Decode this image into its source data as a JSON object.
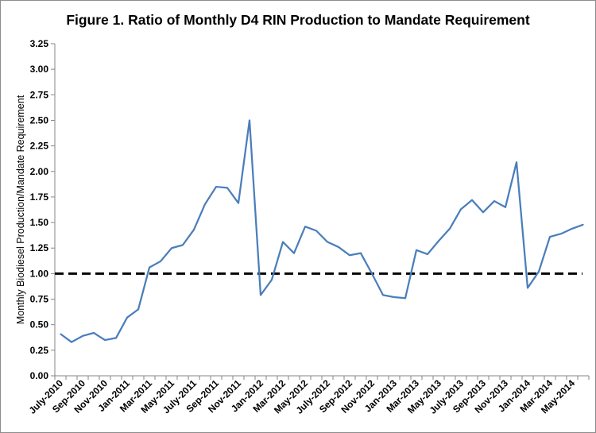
{
  "chart_data": {
    "type": "line",
    "title": "Figure 1. Ratio of Monthly D4 RIN Production to Mandate Requirement",
    "xlabel": "",
    "ylabel": "Monthly Biodiesel Production/Mandate Requirement",
    "ylim": [
      0,
      3.25
    ],
    "yticks": [
      "0.00",
      "0.25",
      "0.50",
      "0.75",
      "1.00",
      "1.25",
      "1.50",
      "1.75",
      "2.00",
      "2.25",
      "2.50",
      "2.75",
      "3.00",
      "3.25"
    ],
    "x": [
      "July-2010",
      "Aug-2010",
      "Sep-2010",
      "Oct-2010",
      "Nov-2010",
      "Dec-2010",
      "Jan-2011",
      "Feb-2011",
      "Mar-2011",
      "Apr-2011",
      "May-2011",
      "Jun-2011",
      "July-2011",
      "Aug-2011",
      "Sep-2011",
      "Oct-2011",
      "Nov-2011",
      "Dec-2011",
      "Jan-2012",
      "Feb-2012",
      "Mar-2012",
      "Apr-2012",
      "May-2012",
      "Jun-2012",
      "July-2012",
      "Aug-2012",
      "Sep-2012",
      "Oct-2012",
      "Nov-2012",
      "Dec-2012",
      "Jan-2013",
      "Feb-2013",
      "Mar-2013",
      "Apr-2013",
      "May-2013",
      "Jun-2013",
      "July-2013",
      "Aug-2013",
      "Sep-2013",
      "Oct-2013",
      "Nov-2013",
      "Dec-2013",
      "Jan-2014",
      "Feb-2014",
      "Mar-2014",
      "Apr-2014",
      "May-2014",
      "Jun-2014"
    ],
    "xtick_labels": [
      "July-2010",
      "Sep-2010",
      "Nov-2010",
      "Jan-2011",
      "Mar-2011",
      "May-2011",
      "July-2011",
      "Sep-2011",
      "Nov-2011",
      "Jan-2012",
      "Mar-2012",
      "May-2012",
      "July-2012",
      "Sep-2012",
      "Nov-2012",
      "Jan-2013",
      "Mar-2013",
      "May-2013",
      "July-2013",
      "Sep-2013",
      "Nov-2013",
      "Jan-2014",
      "Mar-2014",
      "May-2014"
    ],
    "series": [
      {
        "values": [
          0.41,
          0.33,
          0.39,
          0.42,
          0.35,
          0.37,
          0.57,
          0.65,
          1.06,
          1.12,
          1.25,
          1.28,
          1.43,
          1.68,
          1.85,
          1.84,
          1.69,
          2.5,
          0.79,
          0.94,
          1.31,
          1.2,
          1.46,
          1.42,
          1.31,
          1.26,
          1.18,
          1.2,
          1.0,
          0.79,
          0.77,
          0.76,
          1.23,
          1.19,
          1.32,
          1.44,
          1.63,
          1.72,
          1.6,
          1.71,
          1.65,
          2.09,
          0.86,
          1.02,
          1.36,
          1.39,
          1.44,
          1.48
        ],
        "color": "#4a7ebb"
      }
    ],
    "reference_line": {
      "y": 1.0,
      "style": "dashed",
      "color": "#000000"
    },
    "grid": false,
    "legend": "none"
  }
}
